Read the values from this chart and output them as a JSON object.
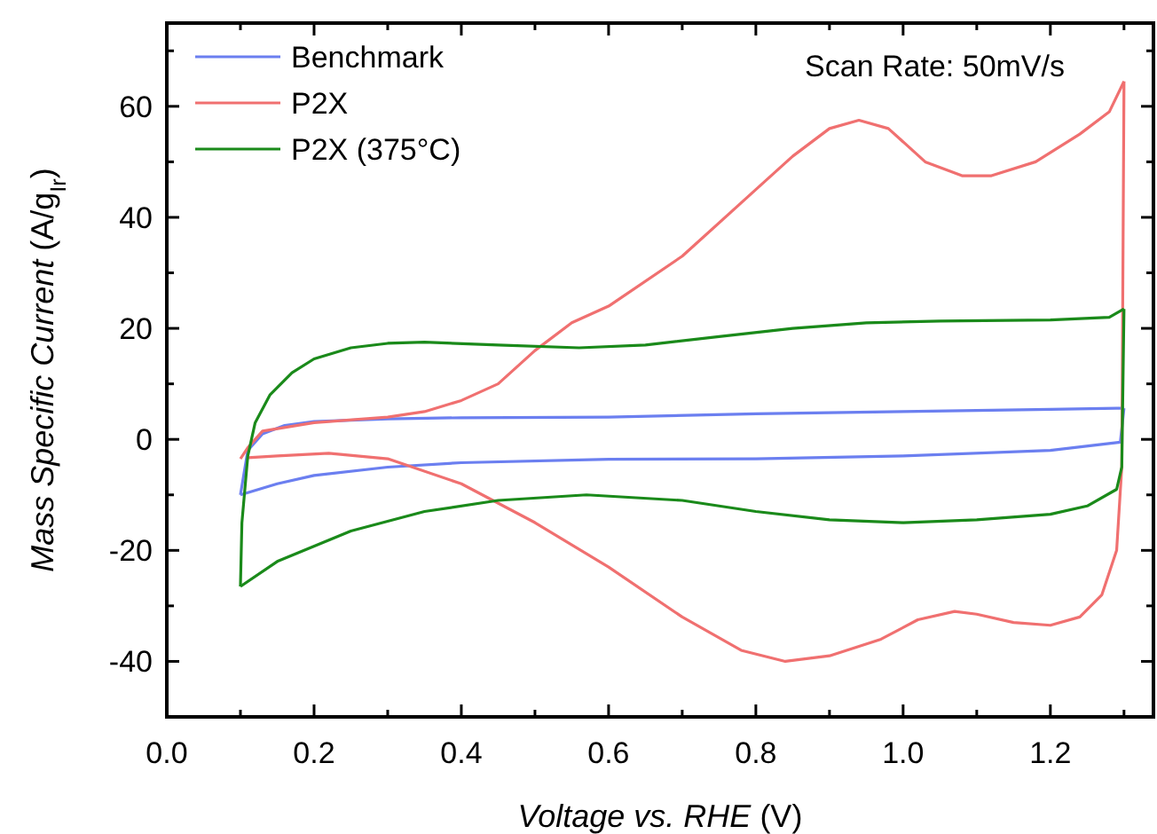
{
  "chart_data": {
    "type": "line",
    "xlabel": "Voltage vs. RHE (V)",
    "ylabel": "Mass Specific Current (A/g$_{Ir}$)",
    "annotations": [
      "Scan Rate: 50mV/s"
    ],
    "xlim": [
      0,
      1.34
    ],
    "xticks": [
      {
        "value": 0,
        "label": "0.0"
      },
      {
        "value": 0.1,
        "label": null
      },
      {
        "value": 0.2,
        "label": "0.2"
      },
      {
        "value": 0.3,
        "label": null
      },
      {
        "value": 0.4,
        "label": "0.4"
      },
      {
        "value": 0.5,
        "label": null
      },
      {
        "value": 0.6,
        "label": "0.6"
      },
      {
        "value": 0.7,
        "label": null
      },
      {
        "value": 0.8,
        "label": "0.8"
      },
      {
        "value": 0.9,
        "label": null
      },
      {
        "value": 1.0,
        "label": "1.0"
      },
      {
        "value": 1.1,
        "label": null
      },
      {
        "value": 1.2,
        "label": "1.2"
      },
      {
        "value": 1.3,
        "label": null
      }
    ],
    "ylim": [
      -50,
      75
    ],
    "yticks": [
      {
        "value": -50,
        "label": null
      },
      -40,
      {
        "value": -30,
        "label": null
      },
      -20,
      {
        "value": -10,
        "label": null
      },
      0,
      {
        "value": 10,
        "label": null
      },
      20,
      {
        "value": 30,
        "label": null
      },
      40,
      {
        "value": 50,
        "label": null
      },
      60,
      {
        "value": 70,
        "label": null
      }
    ],
    "grid": false,
    "legend": "top left",
    "marker": "none",
    "line_style": "solid",
    "series": [
      {
        "name": "Benchmark",
        "color": "#6b7ff0",
        "x": [
          0.1,
          0.11,
          0.13,
          0.16,
          0.2,
          0.3,
          0.4,
          0.6,
          0.8,
          1.0,
          1.2,
          1.29,
          1.3
        ],
        "values": [
          -10,
          -2,
          1,
          2.5,
          3.2,
          3.7,
          3.9,
          4,
          4.6,
          5,
          5.4,
          5.6,
          5.6
        ]
      },
      {
        "color": "#6b7ff0",
        "x": [
          1.3,
          1.295,
          1.2,
          1.0,
          0.8,
          0.6,
          0.4,
          0.3,
          0.2,
          0.15,
          0.1
        ],
        "values": [
          5.6,
          -0.5,
          -2,
          -3,
          -3.5,
          -3.6,
          -4.2,
          -5,
          -6.5,
          -8,
          -10
        ]
      },
      {
        "name": "P2X",
        "color": "#f07070",
        "x": [
          0.1,
          0.11,
          0.13,
          0.2,
          0.3,
          0.35,
          0.4,
          0.45,
          0.5,
          0.55,
          0.6,
          0.7,
          0.8,
          0.85,
          0.9,
          0.94,
          0.98,
          1.03,
          1.08,
          1.12,
          1.18,
          1.24,
          1.28,
          1.3
        ],
        "values": [
          -3.5,
          -1.5,
          1.5,
          3,
          4,
          5,
          7,
          10,
          16,
          21,
          24,
          33,
          45,
          51,
          56,
          57.5,
          56,
          50,
          47.5,
          47.5,
          50,
          55,
          59,
          64.5
        ]
      },
      {
        "color": "#f07070",
        "x": [
          1.3,
          1.297,
          1.29,
          1.27,
          1.24,
          1.2,
          1.15,
          1.1,
          1.07,
          1.02,
          0.97,
          0.9,
          0.84,
          0.78,
          0.7,
          0.6,
          0.5,
          0.4,
          0.3,
          0.22,
          0.15,
          0.11
        ],
        "values": [
          64.5,
          -5,
          -20,
          -28,
          -32,
          -33.5,
          -33,
          -31.5,
          -31,
          -32.5,
          -36,
          -39,
          -40,
          -38,
          -32,
          -23,
          -15,
          -8,
          -3.5,
          -2.5,
          -3,
          -3.3
        ]
      },
      {
        "name": "P2X (375°C)",
        "color": "#1a8a1a",
        "x": [
          0.1,
          0.102,
          0.11,
          0.12,
          0.14,
          0.17,
          0.2,
          0.25,
          0.3,
          0.35,
          0.45,
          0.56,
          0.65,
          0.75,
          0.85,
          0.95,
          1.05,
          1.2,
          1.28,
          1.3
        ],
        "values": [
          -26.5,
          -15,
          -3,
          3,
          8,
          12,
          14.5,
          16.5,
          17.3,
          17.5,
          17,
          16.5,
          17,
          18.5,
          20,
          21,
          21.3,
          21.5,
          22,
          23.5
        ]
      },
      {
        "color": "#1a8a1a",
        "x": [
          1.3,
          1.297,
          1.29,
          1.25,
          1.2,
          1.1,
          1.0,
          0.9,
          0.8,
          0.7,
          0.57,
          0.45,
          0.35,
          0.25,
          0.15,
          0.1
        ],
        "values": [
          23.5,
          -5,
          -9,
          -12,
          -13.5,
          -14.5,
          -15,
          -14.5,
          -13,
          -11,
          -10,
          -11,
          -13,
          -16.5,
          -22,
          -26.5
        ]
      }
    ]
  }
}
